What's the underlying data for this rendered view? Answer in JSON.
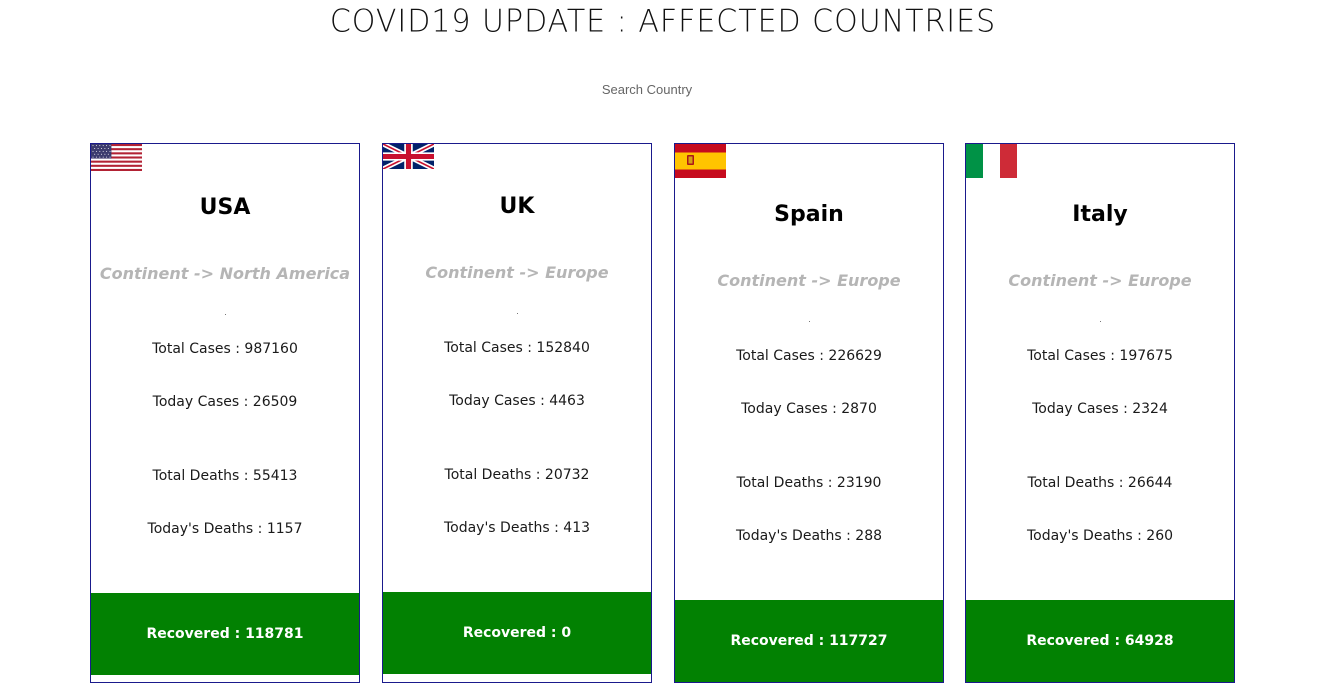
{
  "header": {
    "title": "COVID19 UPDATE : AFFECTED COUNTRIES"
  },
  "search": {
    "placeholder": "Search Country",
    "value": ""
  },
  "colors": {
    "card_border": "#1a1a8c",
    "recovered_bg": "#028102",
    "continent_text": "#b5b5b5"
  },
  "cards": [
    {
      "country": "USA",
      "continent": "Continent -> North America",
      "flag_icon": "usa-flag-icon",
      "total_cases": "Total Cases : 987160",
      "today_cases": "Today Cases : 26509",
      "total_deaths": "Total Deaths : 55413",
      "today_deaths": "Today's Deaths : 1157",
      "recovered": "Recovered : 118781"
    },
    {
      "country": "UK",
      "continent": "Continent -> Europe",
      "flag_icon": "uk-flag-icon",
      "total_cases": "Total Cases : 152840",
      "today_cases": "Today Cases : 4463",
      "total_deaths": "Total Deaths : 20732",
      "today_deaths": "Today's Deaths : 413",
      "recovered": "Recovered : 0"
    },
    {
      "country": "Spain",
      "continent": "Continent -> Europe",
      "flag_icon": "spain-flag-icon",
      "total_cases": "Total Cases : 226629",
      "today_cases": "Today Cases : 2870",
      "total_deaths": "Total Deaths : 23190",
      "today_deaths": "Today's Deaths : 288",
      "recovered": "Recovered : 117727"
    },
    {
      "country": "Italy",
      "continent": "Continent -> Europe",
      "flag_icon": "italy-flag-icon",
      "total_cases": "Total Cases : 197675",
      "today_cases": "Today Cases : 2324",
      "total_deaths": "Total Deaths : 26644",
      "today_deaths": "Today's Deaths : 260",
      "recovered": "Recovered : 64928"
    }
  ]
}
